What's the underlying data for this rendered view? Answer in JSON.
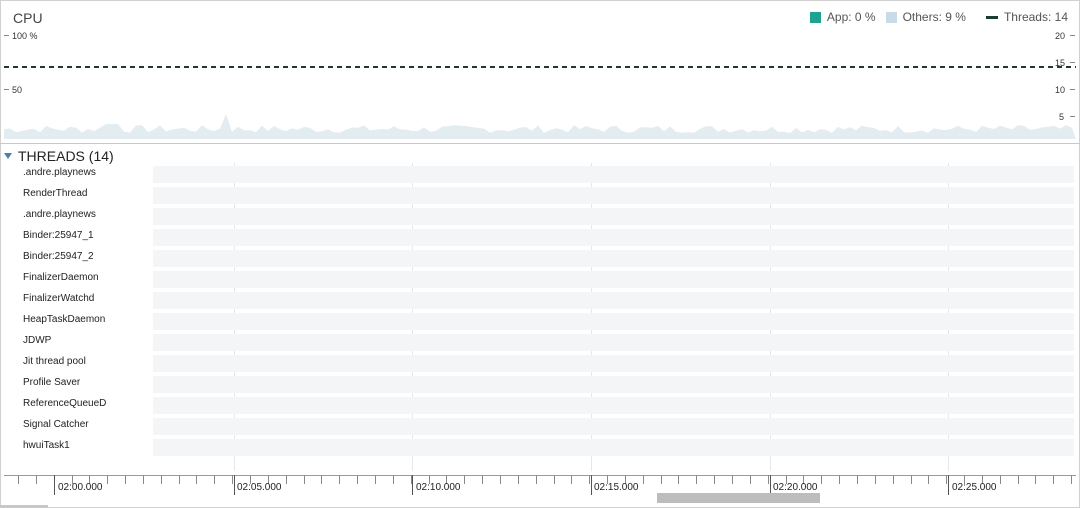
{
  "cpu": {
    "title": "CPU",
    "legend": {
      "app": "App: 0 %",
      "others": "Others:  9 %",
      "threads": "Threads: 14"
    },
    "left_axis": {
      "top": "100 %",
      "mid": "50"
    },
    "right_axis": [
      "20",
      "15",
      "10",
      "5"
    ],
    "colors": {
      "app": "#1fa28f",
      "others": "#c9dbe6",
      "threads_line": "#1b3b36"
    },
    "threads_value": 14
  },
  "threads": {
    "header": "THREADS (14)",
    "items": [
      ".andre.playnews",
      "RenderThread",
      ".andre.playnews",
      "Binder:25947_1",
      "Binder:25947_2",
      "FinalizerDaemon",
      "FinalizerWatchd",
      "HeapTaskDaemon",
      "JDWP",
      "Jit thread pool",
      "Profile Saver",
      "ReferenceQueueD",
      "Signal Catcher",
      "hwuiTask1"
    ]
  },
  "timeline": {
    "labels": [
      "02:00.000",
      "02:05.000",
      "02:10.000",
      "02:15.000",
      "02:20.000",
      "02:25.000"
    ]
  }
}
